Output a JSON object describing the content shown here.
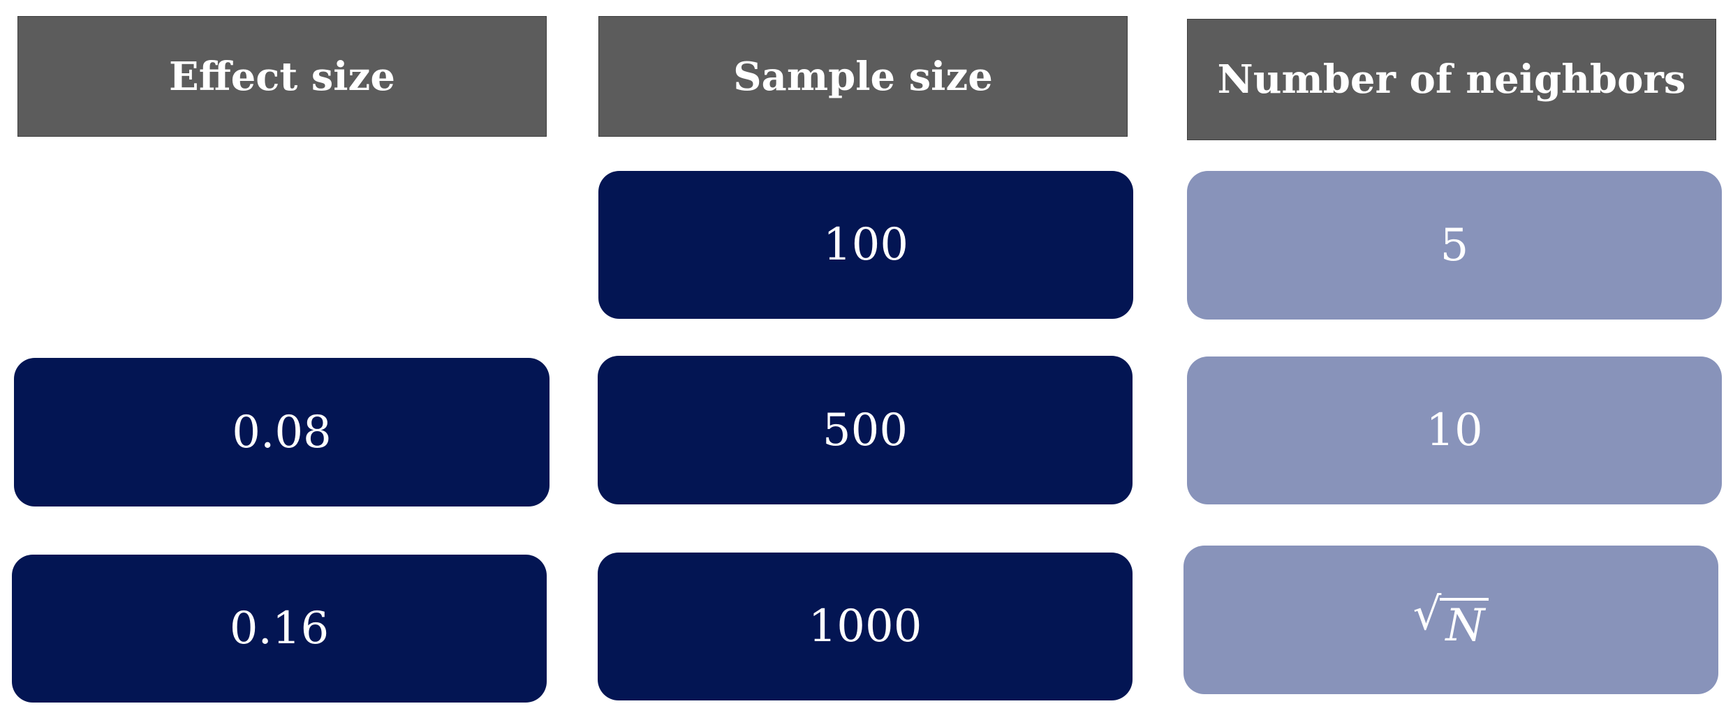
{
  "columns": [
    {
      "header": "Effect size",
      "cells": [
        "0.08",
        "0.16"
      ]
    },
    {
      "header": "Sample size",
      "cells": [
        "100",
        "500",
        "1000"
      ]
    },
    {
      "header": "Number of neighbors",
      "cells": [
        "5",
        "10"
      ],
      "sqrt_cell": {
        "symbol": "√",
        "variable": "N"
      }
    }
  ],
  "colors": {
    "header_bg": "#5c5c5c",
    "dark_cell": "#031553",
    "light_cell": "#8893ba",
    "text": "#ffffff"
  }
}
